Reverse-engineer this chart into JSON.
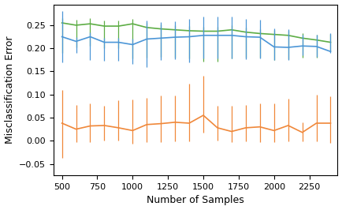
{
  "x": [
    500,
    600,
    700,
    800,
    900,
    1000,
    1100,
    1200,
    1300,
    1400,
    1500,
    1600,
    1700,
    1800,
    1900,
    2000,
    2100,
    2200,
    2300,
    2400
  ],
  "blue_y": [
    0.225,
    0.215,
    0.225,
    0.213,
    0.213,
    0.208,
    0.22,
    0.222,
    0.224,
    0.225,
    0.228,
    0.228,
    0.228,
    0.225,
    0.224,
    0.203,
    0.202,
    0.205,
    0.204,
    0.193
  ],
  "blue_err_lo": [
    0.055,
    0.025,
    0.05,
    0.04,
    0.04,
    0.042,
    0.06,
    0.048,
    0.048,
    0.055,
    0.05,
    0.05,
    0.05,
    0.048,
    0.046,
    0.028,
    0.028,
    0.02,
    0.022,
    0.003
  ],
  "blue_err_hi": [
    0.055,
    0.01,
    0.01,
    0.01,
    0.01,
    0.012,
    0.04,
    0.035,
    0.035,
    0.038,
    0.04,
    0.04,
    0.04,
    0.038,
    0.038,
    0.04,
    0.04,
    0.025,
    0.025,
    0.04
  ],
  "green_y": [
    0.255,
    0.25,
    0.253,
    0.248,
    0.248,
    0.253,
    0.245,
    0.242,
    0.24,
    0.238,
    0.237,
    0.237,
    0.24,
    0.235,
    0.232,
    0.23,
    0.228,
    0.222,
    0.218,
    0.213
  ],
  "green_err_lo": [
    0.065,
    0.048,
    0.048,
    0.048,
    0.048,
    0.075,
    0.065,
    0.06,
    0.06,
    0.06,
    0.065,
    0.065,
    0.062,
    0.055,
    0.052,
    0.055,
    0.052,
    0.042,
    0.038,
    0.02
  ],
  "green_err_hi": [
    0.01,
    0.012,
    0.012,
    0.012,
    0.012,
    0.01,
    0.01,
    0.01,
    0.01,
    0.01,
    0.01,
    0.01,
    0.01,
    0.01,
    0.01,
    0.01,
    0.01,
    0.01,
    0.012,
    0.018
  ],
  "orange_y": [
    0.038,
    0.025,
    0.032,
    0.033,
    0.028,
    0.022,
    0.035,
    0.037,
    0.04,
    0.038,
    0.055,
    0.028,
    0.02,
    0.028,
    0.03,
    0.022,
    0.033,
    0.018,
    0.038,
    0.038
  ],
  "orange_err_lo": [
    0.075,
    0.028,
    0.035,
    0.033,
    0.028,
    0.028,
    0.038,
    0.04,
    0.042,
    0.04,
    0.038,
    0.028,
    0.023,
    0.03,
    0.033,
    0.025,
    0.035,
    0.02,
    0.04,
    0.042
  ],
  "orange_err_hi": [
    0.072,
    0.053,
    0.048,
    0.043,
    0.06,
    0.068,
    0.058,
    0.06,
    0.058,
    0.085,
    0.085,
    0.048,
    0.055,
    0.05,
    0.05,
    0.058,
    0.058,
    0.022,
    0.062,
    0.058
  ],
  "blue_color": "#4C96D7",
  "green_color": "#5DAD45",
  "orange_color": "#F0883A",
  "xlabel": "Number of Samples",
  "ylabel": "Misclassification Error",
  "xlim": [
    440,
    2450
  ],
  "ylim": [
    -0.075,
    0.295
  ],
  "xticks": [
    500,
    750,
    1000,
    1250,
    1500,
    1750,
    2000,
    2250
  ],
  "yticks": [
    -0.05,
    0.0,
    0.05,
    0.1,
    0.15,
    0.2,
    0.25
  ]
}
